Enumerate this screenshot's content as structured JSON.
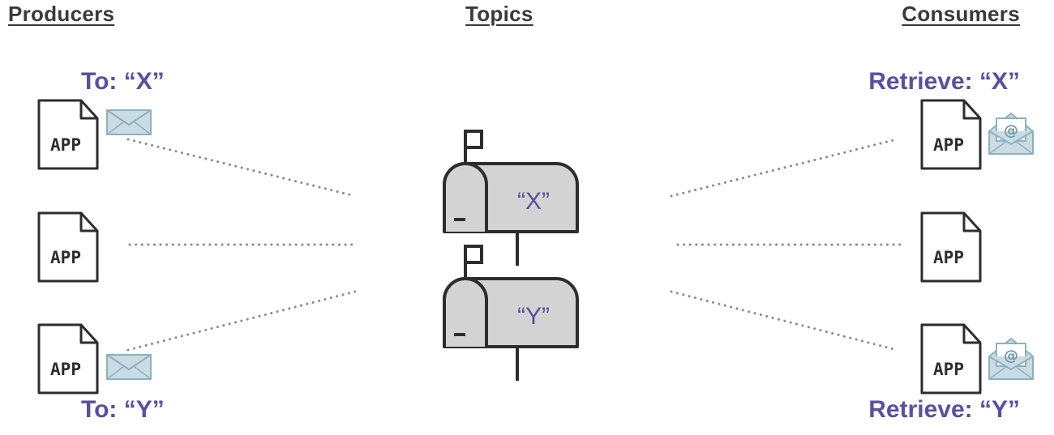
{
  "headings": {
    "producers": "Producers",
    "topics": "Topics",
    "consumers": "Consumers"
  },
  "producers": {
    "label_top": "To: “X”",
    "label_bottom": "To: “Y”",
    "app_label": "APP"
  },
  "topics": {
    "mailbox_x": "“X”",
    "mailbox_y": "“Y”"
  },
  "consumers": {
    "label_top": "Retrieve: “X”",
    "label_bottom": "Retrieve: “Y”",
    "app_label": "APP"
  },
  "colors": {
    "accent": "#5b4fa0",
    "outline": "#2d2d2d",
    "mailbox_fill": "#d3d3d3",
    "envelope_fill": "#c9dbe3",
    "envelope_stroke": "#8fb0bf",
    "dots": "#8a8a8a"
  },
  "icons": {
    "producer_message": "envelope-icon",
    "consumer_message": "open-envelope-at-icon",
    "topic": "mailbox-icon",
    "app": "document-icon"
  }
}
